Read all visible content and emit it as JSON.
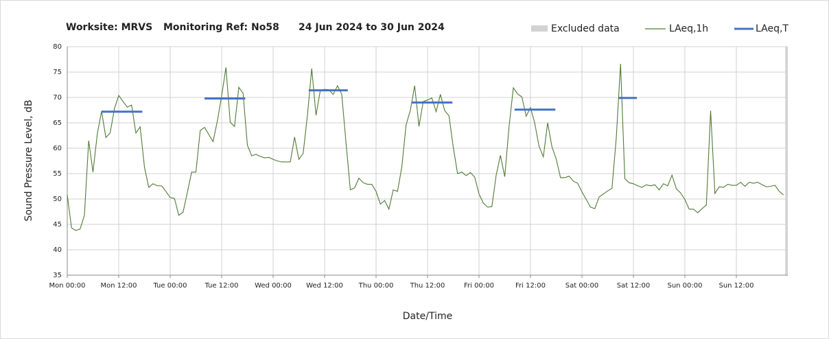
{
  "chart_data": {
    "type": "line",
    "title_parts": [
      "Worksite: MRVS",
      "Monitoring Ref: No58",
      "24 Jun 2024 to 30 Jun 2024"
    ],
    "x_label": "Date/Time",
    "y_label": "Sound Pressure Level, dB",
    "xlim": [
      0,
      168
    ],
    "xticks": [
      {
        "value": 0,
        "label": "Mon 00:00"
      },
      {
        "value": 12,
        "label": "Mon 12:00"
      },
      {
        "value": 24,
        "label": "Tue 00:00"
      },
      {
        "value": 36,
        "label": "Tue 12:00"
      },
      {
        "value": 48,
        "label": "Wed 00:00"
      },
      {
        "value": 60,
        "label": "Wed 12:00"
      },
      {
        "value": 72,
        "label": "Thu 00:00"
      },
      {
        "value": 84,
        "label": "Thu 12:00"
      },
      {
        "value": 96,
        "label": "Fri 00:00"
      },
      {
        "value": 108,
        "label": "Fri 12:00"
      },
      {
        "value": 120,
        "label": "Sat 00:00"
      },
      {
        "value": 132,
        "label": "Sat 12:00"
      },
      {
        "value": 144,
        "label": "Sun 00:00"
      },
      {
        "value": 156,
        "label": "Sun 12:00"
      }
    ],
    "ylim": [
      35,
      80
    ],
    "yticks": [
      35,
      40,
      45,
      50,
      55,
      60,
      65,
      70,
      75,
      80
    ],
    "grid": true,
    "legend_position": "top-right",
    "excluded": {
      "name": "Excluded data",
      "color": "#d3d3d3",
      "ranges": [
        {
          "start": 167.4,
          "end": 168
        }
      ]
    },
    "x": [
      0,
      1,
      2,
      3,
      4,
      5,
      6,
      7,
      8,
      9,
      10,
      11,
      12,
      13,
      14,
      15,
      16,
      17,
      18,
      19,
      20,
      21,
      22,
      23,
      24,
      25,
      26,
      27,
      28,
      29,
      30,
      31,
      32,
      33,
      34,
      35,
      36,
      37,
      38,
      39,
      40,
      41,
      42,
      43,
      44,
      45,
      46,
      47,
      48,
      49,
      50,
      51,
      52,
      53,
      54,
      55,
      56,
      57,
      58,
      59,
      60,
      61,
      62,
      63,
      64,
      65,
      66,
      67,
      68,
      69,
      70,
      71,
      72,
      73,
      74,
      75,
      76,
      77,
      78,
      79,
      80,
      81,
      82,
      83,
      84,
      85,
      86,
      87,
      88,
      89,
      90,
      91,
      92,
      93,
      94,
      95,
      96,
      97,
      98,
      99,
      100,
      101,
      102,
      103,
      104,
      105,
      106,
      107,
      108,
      109,
      110,
      111,
      112,
      113,
      114,
      115,
      116,
      117,
      118,
      119,
      120,
      121,
      122,
      123,
      124,
      125,
      126,
      127,
      128,
      129,
      130,
      131,
      132,
      133,
      134,
      135,
      136,
      137,
      138,
      139,
      140,
      141,
      142,
      143,
      144,
      145,
      146,
      147,
      148,
      149,
      150,
      151,
      152,
      153,
      154,
      155,
      156,
      157,
      158,
      159,
      160,
      161,
      162,
      163,
      164,
      165,
      166,
      167
    ],
    "series": [
      {
        "name": "LAeq,1h",
        "color": "#4e7a34",
        "values": [
          50.8,
          44.3,
          43.8,
          44.1,
          46.8,
          61.5,
          55.3,
          62.8,
          67.3,
          62.1,
          63.0,
          67.8,
          70.4,
          69.2,
          68.1,
          68.5,
          63.0,
          64.2,
          56.3,
          52.3,
          53.0,
          52.6,
          52.6,
          51.5,
          50.3,
          50.1,
          46.8,
          47.4,
          51.3,
          55.3,
          55.3,
          63.5,
          64.1,
          62.7,
          61.3,
          65.4,
          70.3,
          75.9,
          65.1,
          64.3,
          72.0,
          70.8,
          60.6,
          58.5,
          58.8,
          58.4,
          58.1,
          58.2,
          57.8,
          57.5,
          57.3,
          57.3,
          57.3,
          62.2,
          57.8,
          59.0,
          66.5,
          75.7,
          66.5,
          71.4,
          71.6,
          71.5,
          70.6,
          72.3,
          70.6,
          61.0,
          51.8,
          52.2,
          54.1,
          53.2,
          52.9,
          52.9,
          51.5,
          49.0,
          49.7,
          48.0,
          51.8,
          51.5,
          56.3,
          64.6,
          67.5,
          72.3,
          64.3,
          69.2,
          69.5,
          69.9,
          67.2,
          70.6,
          67.4,
          66.4,
          60.2,
          55.0,
          55.3,
          54.6,
          55.2,
          54.3,
          51.0,
          49.2,
          48.4,
          48.5,
          54.7,
          58.6,
          54.4,
          64.2,
          71.9,
          70.7,
          70.1,
          66.3,
          68.0,
          64.9,
          60.4,
          58.3,
          65.0,
          60.3,
          57.9,
          54.2,
          54.2,
          54.5,
          53.5,
          53.1,
          51.4,
          49.9,
          48.4,
          48.1,
          50.4,
          51.0,
          51.6,
          52.1,
          62.0,
          76.6,
          54.0,
          53.2,
          53.0,
          52.6,
          52.3,
          52.8,
          52.6,
          52.8,
          51.8,
          53.0,
          52.6,
          54.7,
          52.0,
          51.2,
          49.9,
          48.0,
          48.0,
          47.3,
          48.1,
          48.8,
          67.4,
          51.1,
          52.4,
          52.3,
          52.9,
          52.7,
          52.7,
          53.3,
          52.5,
          53.3,
          53.1,
          53.3,
          52.8,
          52.4,
          52.5,
          52.7,
          51.5,
          50.8
        ]
      }
    ],
    "segments_series": {
      "name": "LAeq,T",
      "color": "#4472c4",
      "segments": [
        {
          "start": 8,
          "end": 17.5,
          "value": 67.2
        },
        {
          "start": 32,
          "end": 41.5,
          "value": 69.8
        },
        {
          "start": 56.3,
          "end": 65.4,
          "value": 71.4
        },
        {
          "start": 80.3,
          "end": 89.8,
          "value": 69.0
        },
        {
          "start": 104.3,
          "end": 113.8,
          "value": 67.6
        },
        {
          "start": 128.6,
          "end": 132.8,
          "value": 69.9
        }
      ]
    }
  }
}
